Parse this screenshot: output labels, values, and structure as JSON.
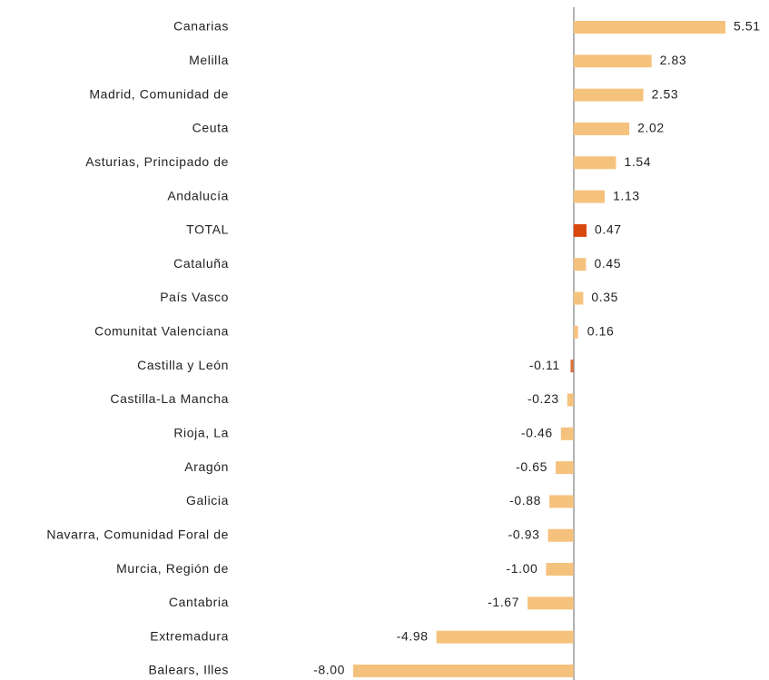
{
  "chart_data": {
    "type": "hbar",
    "categories": [
      "Canarias",
      "Melilla",
      "Madrid, Comunidad de",
      "Ceuta",
      "Asturias, Principado de",
      "Andalucía",
      "TOTAL",
      "Cataluña",
      "País Vasco",
      "Comunitat Valenciana",
      "Castilla y León",
      "Castilla-La Mancha",
      "Rioja, La",
      "Aragón",
      "Galicia",
      "Navarra, Comunidad Foral de",
      "Murcia, Región de",
      "Cantabria",
      "Extremadura",
      "Balears, Illes"
    ],
    "values": [
      5.51,
      2.83,
      2.53,
      2.02,
      1.54,
      1.13,
      0.47,
      0.45,
      0.35,
      0.16,
      -0.11,
      -0.23,
      -0.46,
      -0.65,
      -0.88,
      -0.93,
      -1,
      -1.67,
      -4.98,
      -8
    ],
    "value_labels": [
      "5.51",
      "2.83",
      "2.53",
      "2.02",
      "1.54",
      "1.13",
      "0.47",
      "0.45",
      "0.35",
      "0.16",
      "-0.11",
      "-0.23",
      "-0.46",
      "-0.65",
      "-0.88",
      "-0.93",
      "-1.00",
      "-1.67",
      "-4.98",
      "-8.00"
    ],
    "colors": [
      "#f5c27e",
      "#f5c27e",
      "#f5c27e",
      "#f5c27e",
      "#f5c27e",
      "#f5c27e",
      "#d9480f",
      "#f5c27e",
      "#f5c27e",
      "#f5c27e",
      "#d9733a",
      "#f5c27e",
      "#f5c27e",
      "#f5c27e",
      "#f5c27e",
      "#f5c27e",
      "#f5c27e",
      "#f5c27e",
      "#f5c27e",
      "#f5c27e"
    ]
  }
}
